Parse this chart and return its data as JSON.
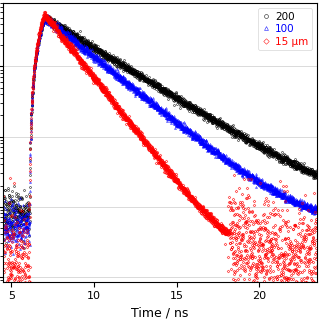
{
  "xlabel": "Time / ns",
  "xlim": [
    4.5,
    23.5
  ],
  "ylim_log": [
    0.85,
    8000
  ],
  "xticks": [
    5,
    10,
    15,
    20
  ],
  "legend_labels": [
    "200",
    "100",
    "15 μm"
  ],
  "series_200_color": "black",
  "series_100_color": "blue",
  "series_15_color": "red",
  "peak_time": 7.0,
  "peak_value_200": 5000,
  "peak_value_100": 5000,
  "peak_value_15": 5500,
  "tau_200": 3.0,
  "tau_100": 2.3,
  "tau_15": 1.45,
  "bg_200": 8.0,
  "bg_100": 5.0,
  "bg_15": 1.5,
  "rise_start": 6.1,
  "n_points": 3000
}
